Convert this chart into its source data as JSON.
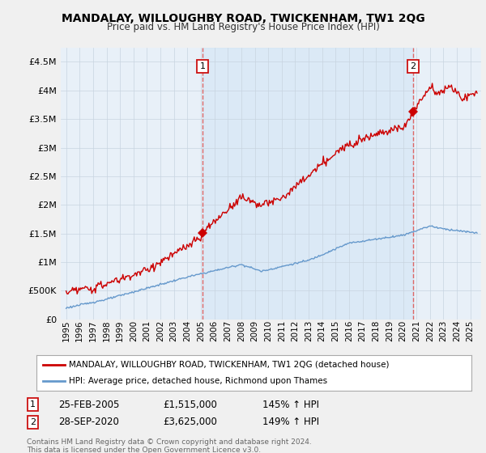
{
  "title": "MANDALAY, WILLOUGHBY ROAD, TWICKENHAM, TW1 2QG",
  "subtitle": "Price paid vs. HM Land Registry's House Price Index (HPI)",
  "legend_label_red": "MANDALAY, WILLOUGHBY ROAD, TWICKENHAM, TW1 2QG (detached house)",
  "legend_label_blue": "HPI: Average price, detached house, Richmond upon Thames",
  "annotation1_date": "25-FEB-2005",
  "annotation1_price": "£1,515,000",
  "annotation1_hpi": "145% ↑ HPI",
  "annotation2_date": "28-SEP-2020",
  "annotation2_price": "£3,625,000",
  "annotation2_hpi": "149% ↑ HPI",
  "footnote": "Contains HM Land Registry data © Crown copyright and database right 2024.\nThis data is licensed under the Open Government Licence v3.0.",
  "red_color": "#cc0000",
  "blue_color": "#6699cc",
  "vline_color": "#dd6666",
  "plot_bg_color": "#e8f0f8",
  "background_color": "#f0f0f0",
  "legend_bg": "#ffffff",
  "grid_color": "#c8d4e0",
  "ylim": [
    0,
    4750000
  ],
  "yticks": [
    0,
    500000,
    1000000,
    1500000,
    2000000,
    2500000,
    3000000,
    3500000,
    4000000,
    4500000
  ],
  "ytick_labels": [
    "£0",
    "£500K",
    "£1M",
    "£1.5M",
    "£2M",
    "£2.5M",
    "£3M",
    "£3.5M",
    "£4M",
    "£4.5M"
  ],
  "year_start": 1995,
  "year_end": 2025,
  "ann1_year": 2005.12,
  "ann2_year": 2020.75
}
